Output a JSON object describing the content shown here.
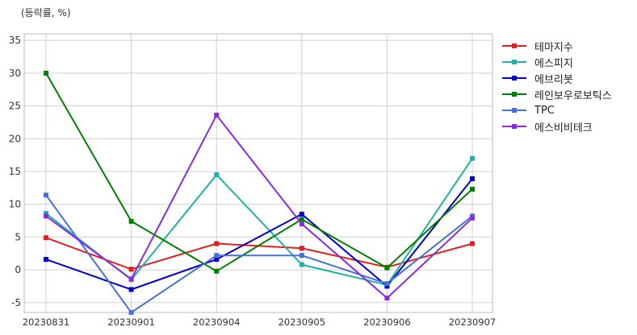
{
  "chart_data": {
    "type": "line",
    "ylabel": "(등락률, %)",
    "categories": [
      "20230831",
      "20230901",
      "20230904",
      "20230905",
      "20230906",
      "20230907"
    ],
    "ylim": [
      -6.5,
      36
    ],
    "yticks": [
      -5,
      0,
      5,
      10,
      15,
      20,
      25,
      30,
      35
    ],
    "grid": true,
    "legend_position": "right",
    "series": [
      {
        "name": "테마지수",
        "color": "#e02020",
        "values": [
          4.9,
          0.1,
          4.0,
          3.3,
          0.4,
          4.0
        ]
      },
      {
        "name": "에스피지",
        "color": "#20b0a8",
        "values": [
          8.6,
          -1.5,
          14.5,
          0.8,
          -2.3,
          17.0
        ]
      },
      {
        "name": "에브리봇",
        "color": "#0000cc",
        "values": [
          1.6,
          -3.0,
          1.6,
          8.5,
          -2.5,
          13.9
        ]
      },
      {
        "name": "레인보우로보틱스",
        "color": "#008000",
        "values": [
          30.0,
          7.4,
          -0.2,
          7.7,
          0.3,
          12.3
        ]
      },
      {
        "name": "TPC",
        "color": "#4870d8",
        "values": [
          11.4,
          -6.5,
          2.2,
          2.2,
          -2.1,
          8.2
        ]
      },
      {
        "name": "에스비비테크",
        "color": "#8a2be2",
        "values": [
          8.2,
          -1.4,
          23.6,
          7.0,
          -4.3,
          7.9
        ]
      }
    ]
  }
}
